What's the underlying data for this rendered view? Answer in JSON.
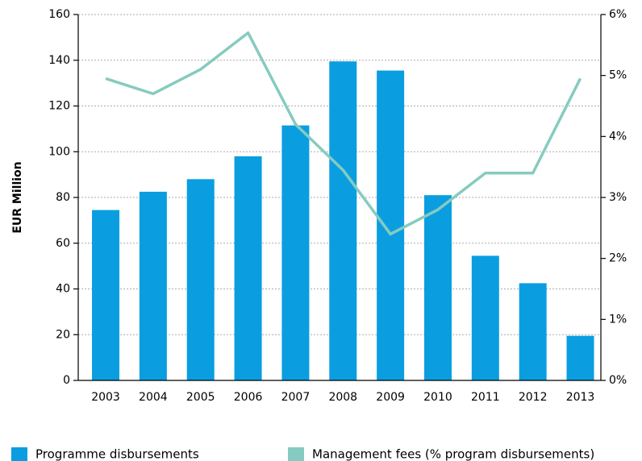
{
  "chart_data": {
    "type": "bar_line",
    "y_label": "EUR Million",
    "categories": [
      "2003",
      "2004",
      "2005",
      "2006",
      "2007",
      "2008",
      "2009",
      "2010",
      "2011",
      "2012",
      "2013"
    ],
    "series": [
      {
        "name": "Programme disbursements",
        "color": "#0a9ee0",
        "type": "bar",
        "values": [
          74.5,
          82.5,
          88,
          98,
          111.5,
          139.5,
          135.5,
          81,
          54.5,
          42.5,
          19.5
        ]
      },
      {
        "name": "Management fees (% program disbursements)",
        "color": "#86cbbf",
        "type": "line",
        "axis": "y2",
        "values": [
          4.95,
          4.7,
          5.1,
          5.7,
          4.2,
          3.45,
          2.4,
          2.8,
          3.4,
          3.4,
          4.95
        ]
      }
    ],
    "ylim": [
      0,
      160
    ],
    "yticks": [
      0,
      20,
      40,
      60,
      80,
      100,
      120,
      140,
      160
    ],
    "y2lim": [
      0,
      6
    ],
    "y2ticks": [
      {
        "value": 0,
        "label": "0%"
      },
      {
        "value": 1,
        "label": "1%"
      },
      {
        "value": 2,
        "label": "2%"
      },
      {
        "value": 3,
        "label": "3%"
      },
      {
        "value": 4,
        "label": "4%"
      },
      {
        "value": 5,
        "label": "5%"
      },
      {
        "value": 6,
        "label": "6%"
      }
    ],
    "grid": true,
    "legend": "bottom"
  }
}
